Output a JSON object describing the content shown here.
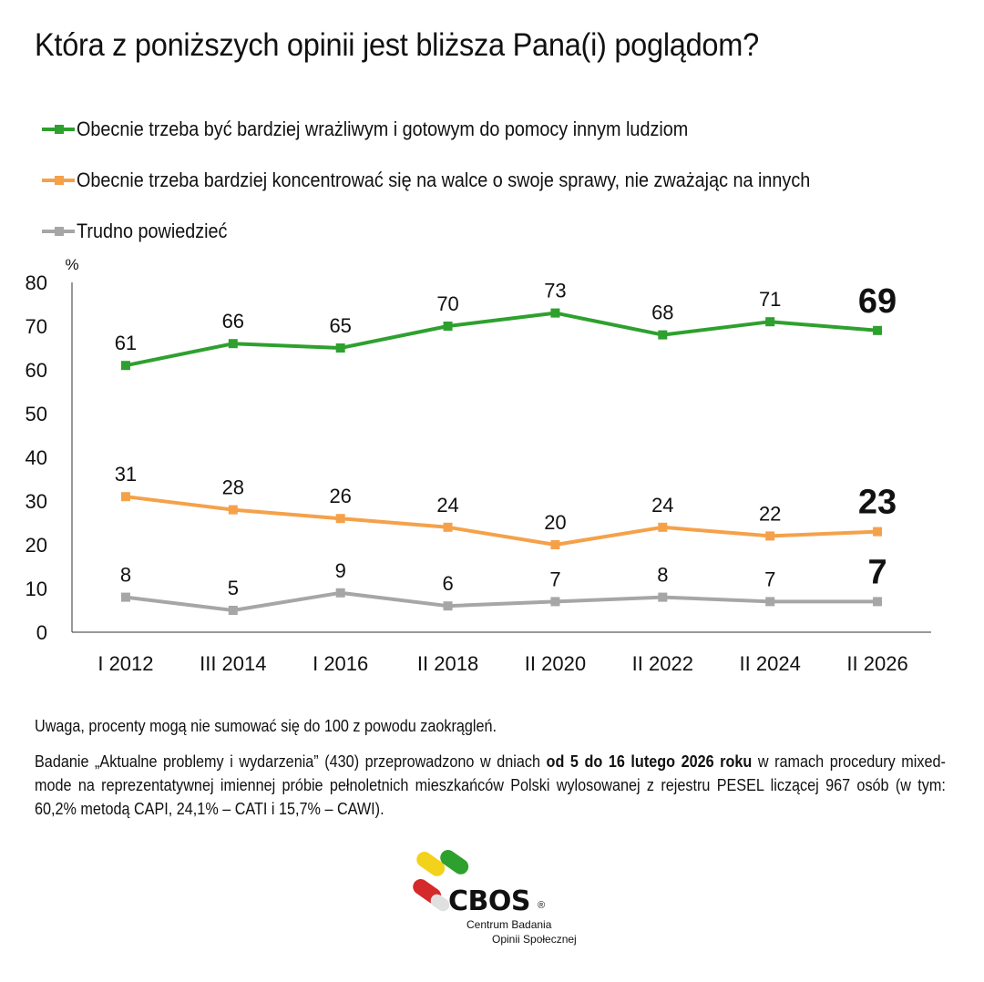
{
  "title": "Która z poniższych opinii jest bliższa Pana(i) poglądom?",
  "colors": {
    "green": "#2ea02e",
    "orange": "#f5a14a",
    "gray": "#a6a6a6",
    "axis": "#333333"
  },
  "chart_data": {
    "type": "line",
    "ylabel": "%",
    "ylim": [
      0,
      80
    ],
    "yticks": [
      "0",
      "10",
      "20",
      "30",
      "40",
      "50",
      "60",
      "70",
      "80"
    ],
    "categories": [
      "I 2012",
      "III 2014",
      "I 2016",
      "II 2018",
      "II 2020",
      "II 2022",
      "II 2024",
      "II 2026"
    ],
    "grid": false,
    "legend_position": "top",
    "series": [
      {
        "name": "Obecnie trzeba być bardziej wrażliwym i gotowym do pomocy innym ludziom",
        "color": "#2ea02e",
        "values": [
          61,
          66,
          65,
          70,
          73,
          68,
          71,
          69
        ],
        "labels": [
          "61",
          "66",
          "65",
          "70",
          "73",
          "68",
          "71",
          "69"
        ]
      },
      {
        "name": "Obecnie trzeba bardziej koncentrować się na walce o swoje sprawy, nie zważając na innych",
        "color": "#f5a14a",
        "values": [
          31,
          28,
          26,
          24,
          20,
          24,
          22,
          23
        ],
        "labels": [
          "31",
          "28",
          "26",
          "24",
          "20",
          "24",
          "22",
          "23"
        ]
      },
      {
        "name": "Trudno powiedzieć",
        "color": "#a6a6a6",
        "values": [
          8,
          5,
          9,
          6,
          7,
          8,
          7,
          7
        ],
        "labels": [
          "8",
          "5",
          "9",
          "6",
          "7",
          "8",
          "7",
          "7"
        ]
      }
    ]
  },
  "footer": {
    "note": "Uwaga, procenty mogą nie sumować się  do 100 z powodu zaokrągleń.",
    "method_pre": "Badanie „Aktualne problemy i wydarzenia” (430) przeprowadzono w dniach ",
    "method_bold": "od 5 do 16 lutego 2026 roku",
    "method_post": " w ramach procedury mixed-mode na reprezentatywnej imiennej próbie pełnoletnich mieszkańców Polski wylosowanej z rejestru PESEL liczącej 967 osób (w tym: 60,2% metodą CAPI, 24,1% – CATI i 15,7% – CAWI)."
  },
  "logo": {
    "name": "CBOS",
    "reg": "®",
    "subtitle_line1": "Centrum Badania",
    "subtitle_line2": "Opinii Społecznej"
  }
}
